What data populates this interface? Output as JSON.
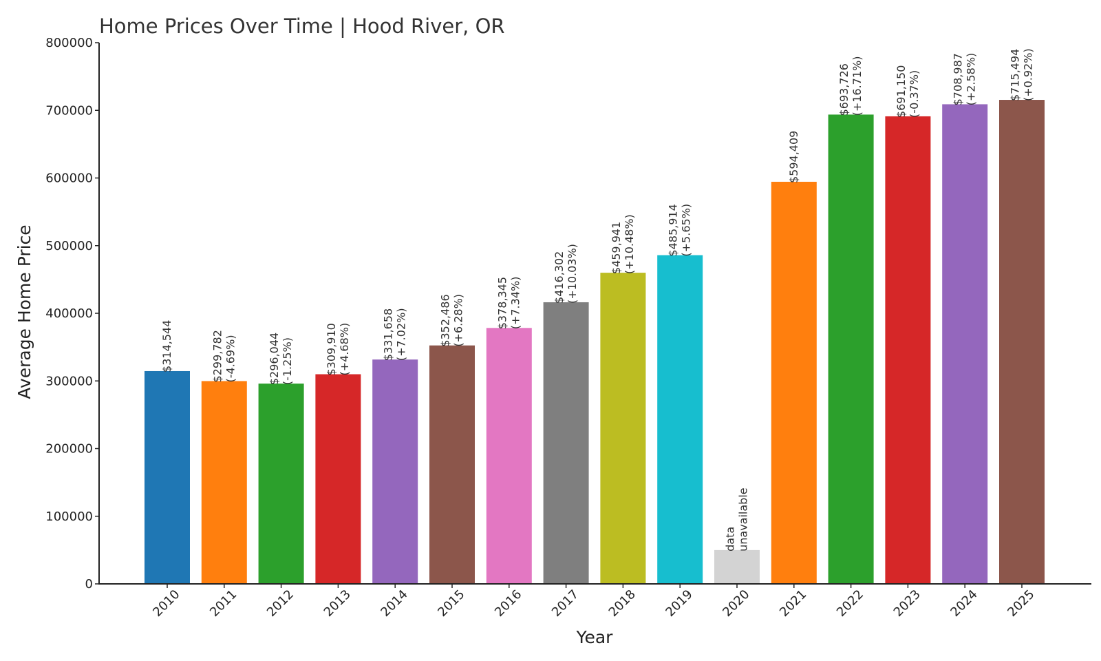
{
  "chart_data": {
    "type": "bar",
    "title": "Home Prices Over Time | Hood River, OR",
    "xlabel": "Year",
    "ylabel": "Average Home Price",
    "ylim": [
      0,
      800000
    ],
    "yticks": [
      "0",
      "100000",
      "200000",
      "300000",
      "400000",
      "500000",
      "600000",
      "700000",
      "800000"
    ],
    "grid": false,
    "categories": [
      "2010",
      "2011",
      "2012",
      "2013",
      "2014",
      "2015",
      "2016",
      "2017",
      "2018",
      "2019",
      "2020",
      "2021",
      "2022",
      "2023",
      "2024",
      "2025"
    ],
    "values": [
      314544,
      299782,
      296044,
      309910,
      331658,
      352486,
      378345,
      416302,
      459941,
      485914,
      50000,
      594409,
      693726,
      691150,
      708987,
      715494
    ],
    "labels": [
      [
        "$314,544"
      ],
      [
        "$299,782",
        "(-4.69%)"
      ],
      [
        "$296,044",
        "(-1.25%)"
      ],
      [
        "$309,910",
        "(+4.68%)"
      ],
      [
        "$331,658",
        "(+7.02%)"
      ],
      [
        "$352,486",
        "(+6.28%)"
      ],
      [
        "$378,345",
        "(+7.34%)"
      ],
      [
        "$416,302",
        "(+10.03%)"
      ],
      [
        "$459,941",
        "(+10.48%)"
      ],
      [
        "$485,914",
        "(+5.65%)"
      ],
      [
        "data",
        "unavailable"
      ],
      [
        "$594,409"
      ],
      [
        "$693,726",
        "(+16.71%)"
      ],
      [
        "$691,150",
        "(-0.37%)"
      ],
      [
        "$708,987",
        "(+2.58%)"
      ],
      [
        "$715,494",
        "(+0.92%)"
      ]
    ],
    "colors": [
      "#1f77b4",
      "#ff7f0e",
      "#2ca02c",
      "#d62728",
      "#9467bd",
      "#8c564b",
      "#e377c2",
      "#7f7f7f",
      "#bcbd22",
      "#17becf",
      "#d3d3d3",
      "#ff7f0e",
      "#2ca02c",
      "#d62728",
      "#9467bd",
      "#8c564b"
    ]
  }
}
